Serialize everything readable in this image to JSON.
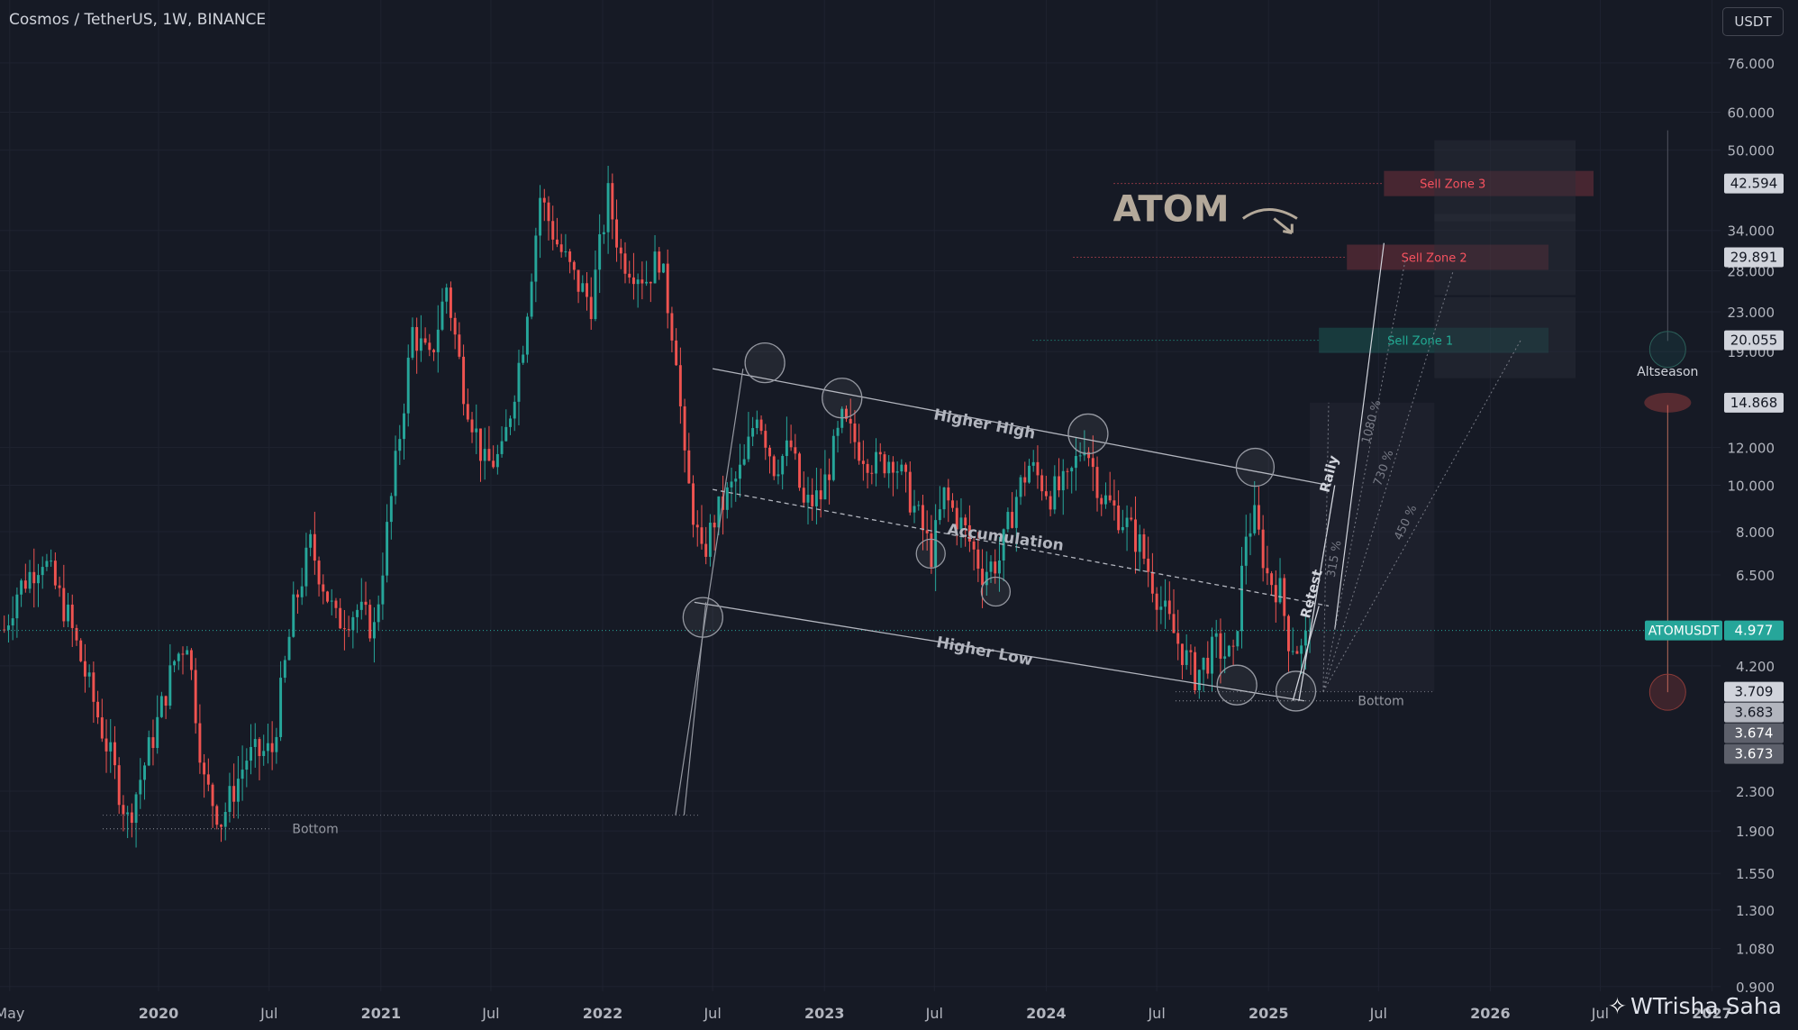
{
  "header": {
    "symbol_line": "Cosmos / TetherUS, 1W, BINANCE"
  },
  "currency_button": "USDT",
  "watermark": {
    "icon": "tradingview-logo-icon",
    "text": "WTrisha Saha"
  },
  "colors": {
    "background": "#161a25",
    "up": "#26a69a",
    "down": "#ef5350",
    "grid": "#1f2330",
    "price_line": "#26a69a"
  },
  "chart_data": {
    "type": "candlestick",
    "scale": "log",
    "grid": true,
    "y_ticks": [
      76.0,
      60.0,
      50.0,
      34.0,
      28.0,
      23.0,
      19.0,
      12.0,
      10.0,
      8.0,
      6.5,
      4.2,
      2.3,
      1.9,
      1.55,
      1.3,
      1.08,
      0.9
    ],
    "y_tick_labels": [
      "76.000",
      "60.000",
      "50.000",
      "34.000",
      "28.000",
      "23.000",
      "19.000",
      "12.000",
      "10.000",
      "8.000",
      "6.500",
      "4.200",
      "2.300",
      "1.900",
      "1.550",
      "1.300",
      "1.080",
      "0.900"
    ],
    "y_range": [
      0.88,
      88
    ],
    "x_range": [
      "2019-04-15",
      "2027-01-15"
    ],
    "x_ticks": [
      {
        "date": "2019-05-01",
        "label": "May"
      },
      {
        "date": "2020-01-01",
        "label": "2020"
      },
      {
        "date": "2020-07-01",
        "label": "Jul"
      },
      {
        "date": "2021-01-01",
        "label": "2021"
      },
      {
        "date": "2021-07-01",
        "label": "Jul"
      },
      {
        "date": "2022-01-01",
        "label": "2022"
      },
      {
        "date": "2022-07-01",
        "label": "Jul"
      },
      {
        "date": "2023-01-01",
        "label": "2023"
      },
      {
        "date": "2023-07-01",
        "label": "Jul"
      },
      {
        "date": "2024-01-01",
        "label": "2024"
      },
      {
        "date": "2024-07-01",
        "label": "Jul"
      },
      {
        "date": "2025-01-01",
        "label": "2025"
      },
      {
        "date": "2025-07-01",
        "label": "Jul"
      },
      {
        "date": "2026-01-01",
        "label": "2026"
      },
      {
        "date": "2026-07-01",
        "label": "Jul"
      },
      {
        "date": "2027-01-01",
        "label": "2027"
      }
    ],
    "price_anchors": [
      [
        "2019-04-22",
        5.0
      ],
      [
        "2019-05-13",
        6.0
      ],
      [
        "2019-06-24",
        7.1
      ],
      [
        "2019-08-05",
        5.3
      ],
      [
        "2019-10-14",
        2.7
      ],
      [
        "2019-11-11",
        2.0
      ],
      [
        "2019-12-30",
        3.2
      ],
      [
        "2020-01-27",
        4.3
      ],
      [
        "2020-02-17",
        4.8
      ],
      [
        "2020-03-16",
        2.4
      ],
      [
        "2020-04-13",
        2.0
      ],
      [
        "2020-05-25",
        2.7
      ],
      [
        "2020-07-06",
        2.8
      ],
      [
        "2020-08-10",
        5.5
      ],
      [
        "2020-09-07",
        7.5
      ],
      [
        "2020-10-19",
        5.2
      ],
      [
        "2020-11-23",
        5.5
      ],
      [
        "2020-12-21",
        5.0
      ],
      [
        "2021-02-08",
        15.0
      ],
      [
        "2021-02-22",
        21.0
      ],
      [
        "2021-03-22",
        18.0
      ],
      [
        "2021-04-19",
        26.0
      ],
      [
        "2021-05-17",
        16.0
      ],
      [
        "2021-06-21",
        11.0
      ],
      [
        "2021-07-19",
        11.5
      ],
      [
        "2021-08-23",
        20.0
      ],
      [
        "2021-09-20",
        40.0
      ],
      [
        "2021-10-18",
        32.0
      ],
      [
        "2021-11-15",
        27.0
      ],
      [
        "2021-12-13",
        24.0
      ],
      [
        "2022-01-10",
        40.0
      ],
      [
        "2022-01-31",
        30.0
      ],
      [
        "2022-03-14",
        27.0
      ],
      [
        "2022-04-04",
        30.0
      ],
      [
        "2022-05-02",
        19.0
      ],
      [
        "2022-05-16",
        11.0
      ],
      [
        "2022-06-13",
        7.0
      ],
      [
        "2022-07-04",
        8.5
      ],
      [
        "2022-08-22",
        11.0
      ],
      [
        "2022-09-12",
        14.5
      ],
      [
        "2022-10-10",
        11.0
      ],
      [
        "2022-11-07",
        12.0
      ],
      [
        "2022-11-28",
        9.0
      ],
      [
        "2022-12-26",
        9.5
      ],
      [
        "2023-01-30",
        13.5
      ],
      [
        "2023-02-27",
        12.0
      ],
      [
        "2023-03-27",
        11.0
      ],
      [
        "2023-04-24",
        11.5
      ],
      [
        "2023-06-05",
        8.5
      ],
      [
        "2023-06-26",
        7.2
      ],
      [
        "2023-07-17",
        9.5
      ],
      [
        "2023-08-21",
        8.0
      ],
      [
        "2023-09-18",
        6.6
      ],
      [
        "2023-10-16",
        7.0
      ],
      [
        "2023-11-13",
        9.5
      ],
      [
        "2023-12-04",
        11.0
      ],
      [
        "2024-01-08",
        9.6
      ],
      [
        "2024-02-05",
        10.0
      ],
      [
        "2024-03-04",
        12.5
      ],
      [
        "2024-04-01",
        9.5
      ],
      [
        "2024-05-06",
        8.5
      ],
      [
        "2024-06-03",
        7.5
      ],
      [
        "2024-07-08",
        5.6
      ],
      [
        "2024-08-05",
        4.7
      ],
      [
        "2024-09-02",
        4.0
      ],
      [
        "2024-10-07",
        4.6
      ],
      [
        "2024-11-04",
        4.3
      ],
      [
        "2024-11-25",
        8.0
      ],
      [
        "2024-12-09",
        8.5
      ],
      [
        "2024-12-30",
        6.5
      ],
      [
        "2025-01-20",
        6.0
      ],
      [
        "2025-02-03",
        4.8
      ],
      [
        "2025-02-24",
        4.5
      ],
      [
        "2025-03-10",
        4.977
      ]
    ],
    "series": [
      {
        "name": "ATOMUSDT",
        "last": 4.977
      }
    ],
    "annotations": {
      "title_text": "ATOM",
      "channel_labels": [
        "Higher High",
        "Accumulation",
        "Higher Low"
      ],
      "arrow_labels": [
        "Retest",
        "Rally"
      ],
      "bottom_labels": [
        "Bottom",
        "Bottom"
      ],
      "fan_percents": [
        "1080 %",
        "730 %",
        "450 %",
        "315 %"
      ],
      "sell_zones": [
        {
          "label": "Sell Zone 3",
          "price": 42.594,
          "color": "#f7525f"
        },
        {
          "label": "Sell Zone 2",
          "price": 29.891,
          "color": "#f7525f"
        },
        {
          "label": "Sell Zone 1",
          "price": 20.055,
          "color": "#22ab94"
        }
      ],
      "altseason_label": "Altseason"
    },
    "price_labels": [
      {
        "text": "42.594",
        "price": 42.594,
        "kind": "light"
      },
      {
        "text": "29.891",
        "price": 29.891,
        "kind": "light"
      },
      {
        "text": "20.055",
        "price": 20.055,
        "kind": "light"
      },
      {
        "text": "14.868",
        "price": 14.868,
        "kind": "light"
      },
      {
        "text": "3.709",
        "price": 3.709,
        "kind": "light"
      },
      {
        "text": "3.683",
        "price": 3.683,
        "kind": "grey"
      },
      {
        "text": "3.674",
        "price": 3.674,
        "kind": "dark"
      },
      {
        "text": "3.673",
        "price": 3.673,
        "kind": "dark"
      }
    ],
    "last_price_label": {
      "symbol": "ATOMUSDT",
      "value": "4.977",
      "price": 4.977
    }
  }
}
